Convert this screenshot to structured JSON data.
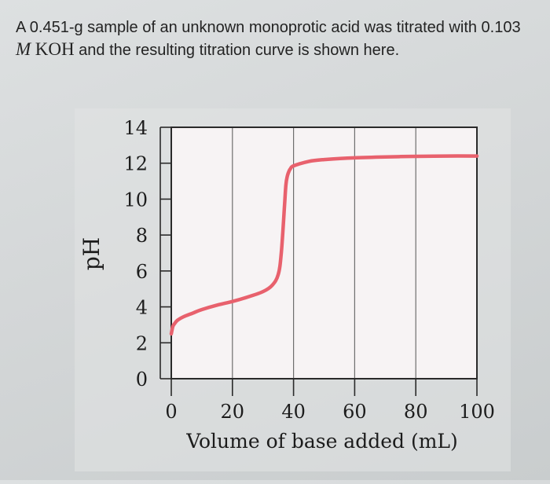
{
  "question": {
    "prefix": "A 0.451-g sample of an unknown monoprotic acid was titrated with 0.103",
    "molarity_symbol": "M",
    "base": "KOH",
    "suffix": "and the resulting titration curve is shown here."
  },
  "chart_data": {
    "type": "line",
    "title": "",
    "xlabel": "Volume of base added (mL)",
    "ylabel": "pH",
    "xlim": [
      0,
      100
    ],
    "ylim": [
      0,
      14
    ],
    "xticks": [
      0,
      20,
      40,
      60,
      80,
      100
    ],
    "yticks": [
      0,
      2,
      4,
      6,
      8,
      10,
      12,
      14
    ],
    "grid": "vertical gridlines",
    "series": [
      {
        "color": "#e8616d",
        "x": [
          0,
          0.5,
          1,
          2,
          4,
          7,
          10,
          15,
          20,
          25,
          30,
          33,
          35,
          36,
          37,
          37.5,
          38,
          38.5,
          39,
          40,
          45,
          50,
          60,
          70,
          80,
          90,
          100
        ],
        "y": [
          2.5,
          2.9,
          3.05,
          3.25,
          3.45,
          3.65,
          3.85,
          4.1,
          4.3,
          4.55,
          4.85,
          5.2,
          5.8,
          7.0,
          9.5,
          10.8,
          11.3,
          11.55,
          11.7,
          11.85,
          12.1,
          12.2,
          12.3,
          12.35,
          12.38,
          12.4,
          12.4
        ]
      }
    ]
  },
  "colors": {
    "plot_background": "#f7f3f4",
    "curve": "#e8616d",
    "axis": "#2a2a2a"
  }
}
